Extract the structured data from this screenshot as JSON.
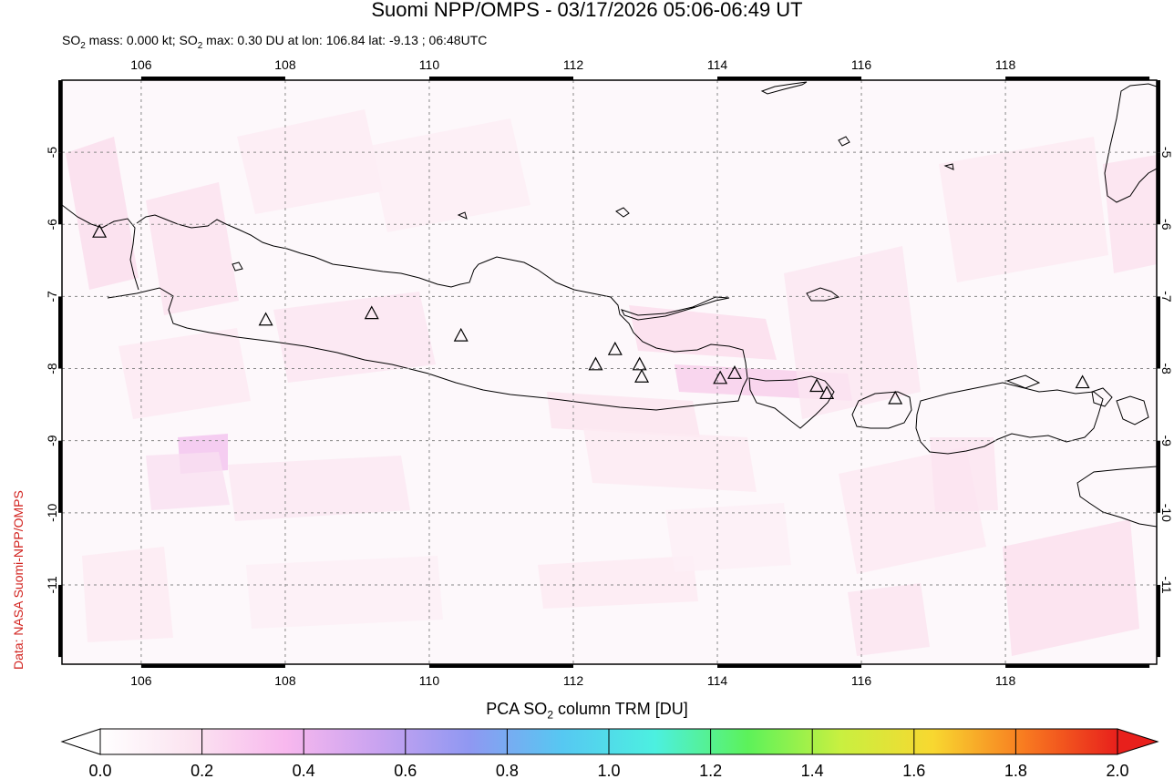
{
  "header": {
    "title": "Suomi NPP/OMPS - 03/17/2026 05:06-06:49 UT",
    "stats_prefix": "SO",
    "stats_sub": "2",
    "stats_mid": " mass: 0.000 kt; SO",
    "stats_sub2": "2",
    "stats_rest": " max: 0.30 DU at lon: 106.84 lat: -9.13 ; 06:48UTC"
  },
  "credit": "Data: NASA Suomi-NPP/OMPS",
  "map": {
    "lon_range": [
      104.9,
      120.1
    ],
    "lat_range": [
      -12.1,
      -4.0
    ],
    "lon_ticks": [
      "106",
      "108",
      "110",
      "112",
      "114",
      "116",
      "118"
    ],
    "lat_ticks": [
      "-5",
      "-6",
      "-7",
      "-8",
      "-9",
      "-10",
      "-11"
    ],
    "gridlines": true,
    "volcanoes": [
      {
        "lon": 105.42,
        "lat": -6.1
      },
      {
        "lon": 107.73,
        "lat": -7.32
      },
      {
        "lon": 109.2,
        "lat": -7.23
      },
      {
        "lon": 110.44,
        "lat": -7.54
      },
      {
        "lon": 112.31,
        "lat": -7.94
      },
      {
        "lon": 112.58,
        "lat": -7.73
      },
      {
        "lon": 112.92,
        "lat": -7.94
      },
      {
        "lon": 112.95,
        "lat": -8.11
      },
      {
        "lon": 114.04,
        "lat": -8.13
      },
      {
        "lon": 114.24,
        "lat": -8.06
      },
      {
        "lon": 115.38,
        "lat": -8.24
      },
      {
        "lon": 115.52,
        "lat": -8.34
      },
      {
        "lon": 116.47,
        "lat": -8.41
      },
      {
        "lon": 119.07,
        "lat": -8.19
      }
    ]
  },
  "colorbar": {
    "label_prefix": "PCA SO",
    "label_sub": "2",
    "label_suffix": " column TRM [DU]",
    "ticks": [
      "0.0",
      "0.2",
      "0.4",
      "0.6",
      "0.8",
      "1.0",
      "1.2",
      "1.4",
      "1.6",
      "1.8",
      "2.0"
    ],
    "range": [
      0.0,
      2.0
    ],
    "colors": [
      "#ffffff",
      "#fbe3f0",
      "#f8b8ee",
      "#c9a3f0",
      "#8f98f2",
      "#56c8f2",
      "#4cf0e0",
      "#5cf25a",
      "#c8f040",
      "#f8d830",
      "#f87a20",
      "#e8201c"
    ]
  }
}
